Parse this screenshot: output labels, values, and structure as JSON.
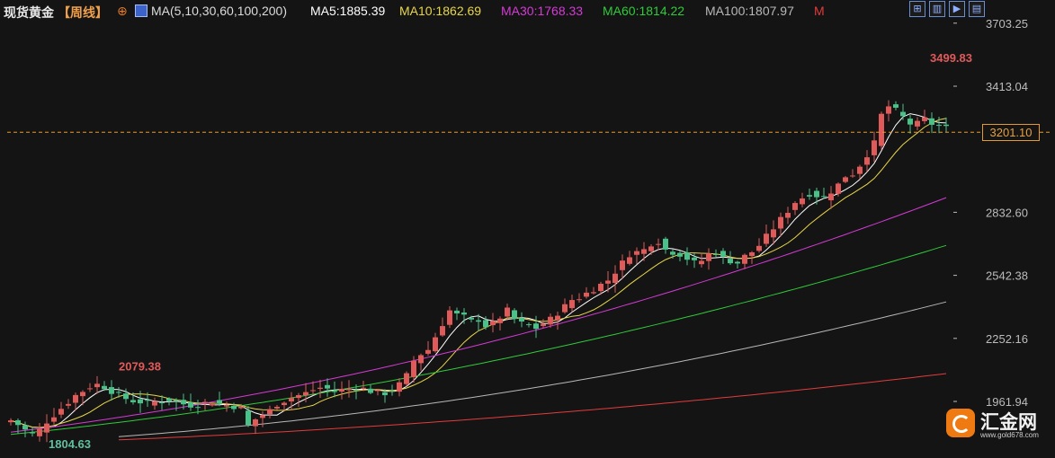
{
  "header": {
    "instrument": "现货黄金",
    "period": "【周线】",
    "add_symbol": "⊕",
    "ma_config": "MA(5,10,30,60,100,200)",
    "ma_values": [
      {
        "label": "MA5:1885.39",
        "color": "#ffffff"
      },
      {
        "label": "MA10:1862.69",
        "color": "#e8d64a"
      },
      {
        "label": "MA30:1768.33",
        "color": "#d53ad6"
      },
      {
        "label": "MA60:1814.22",
        "color": "#2fcb3a"
      },
      {
        "label": "MA100:1807.97",
        "color": "#b8b8b8"
      },
      {
        "label": "M",
        "color": "#e23c3c"
      }
    ]
  },
  "toolbar": {
    "icons": [
      "expand-icon",
      "indicator-icon",
      "play-icon",
      "settings-icon"
    ]
  },
  "current_price": "3201.10",
  "watermark": {
    "name": "汇金网",
    "url": "www.gold678.com"
  },
  "chart_data": {
    "type": "candlestick",
    "y_axis": {
      "ticks": [
        3703.25,
        3413.04,
        2832.6,
        2542.38,
        2252.16,
        1961.94
      ],
      "range": [
        1755,
        3750
      ]
    },
    "annotations": [
      {
        "label": "3499.83",
        "value": 3499.83,
        "kind": "high"
      },
      {
        "label": "2079.38",
        "value": 2079.38,
        "kind": "high"
      },
      {
        "label": "1804.63",
        "value": 1804.63,
        "kind": "low"
      }
    ],
    "current_price_line": 3201.1,
    "close_path": [
      1875,
      1855,
      1830,
      1810,
      1830,
      1870,
      1900,
      1930,
      1960,
      1990,
      2010,
      2030,
      2040,
      2030,
      2010,
      1990,
      1975,
      1965,
      1960,
      1955,
      1960,
      1965,
      1970,
      1960,
      1950,
      1945,
      1950,
      1955,
      1960,
      1950,
      1945,
      1940,
      1930,
      1850,
      1880,
      1900,
      1920,
      1950,
      1965,
      1980,
      1990,
      2000,
      2015,
      2025,
      2020,
      2010,
      2015,
      2020,
      2030,
      2020,
      2010,
      2000,
      2000,
      2015,
      2040,
      2080,
      2150,
      2180,
      2200,
      2260,
      2320,
      2380,
      2360,
      2350,
      2330,
      2340,
      2310,
      2320,
      2350,
      2380,
      2340,
      2320,
      2310,
      2300,
      2320,
      2340,
      2370,
      2400,
      2430,
      2440,
      2460,
      2480,
      2500,
      2520,
      2560,
      2600,
      2640,
      2650,
      2660,
      2690,
      2700,
      2660,
      2650,
      2640,
      2620,
      2600,
      2610,
      2640,
      2650,
      2620,
      2610,
      2600,
      2630,
      2650,
      2680,
      2720,
      2760,
      2800,
      2840,
      2880,
      2900,
      2920,
      2910,
      2900,
      2930,
      2960,
      3000,
      3010,
      3050,
      3100,
      3150,
      3280,
      3320,
      3300,
      3270,
      3240,
      3240,
      3260,
      3240,
      3230,
      3220
    ],
    "series": [
      {
        "name": "MA5",
        "color": "#ffffff",
        "role": "ma"
      },
      {
        "name": "MA10",
        "color": "#e8d64a",
        "role": "ma"
      },
      {
        "name": "MA30",
        "color": "#d53ad6",
        "values_path": [
          1820,
          2300,
          2900
        ]
      },
      {
        "name": "MA60",
        "color": "#2fcb3a",
        "values_path": [
          1810,
          2200,
          2680
        ]
      },
      {
        "name": "MA100",
        "color": "#b8b8b8",
        "values_path": [
          1800,
          2050,
          2420
        ]
      },
      {
        "name": "MA200",
        "color": "#e23c3c",
        "values_path": [
          1785,
          1930,
          2090
        ]
      }
    ],
    "colors": {
      "up": "#e05a5a",
      "down": "#49c28a",
      "axis": "#bcbcbc",
      "price_line": "#e59a2f"
    }
  }
}
